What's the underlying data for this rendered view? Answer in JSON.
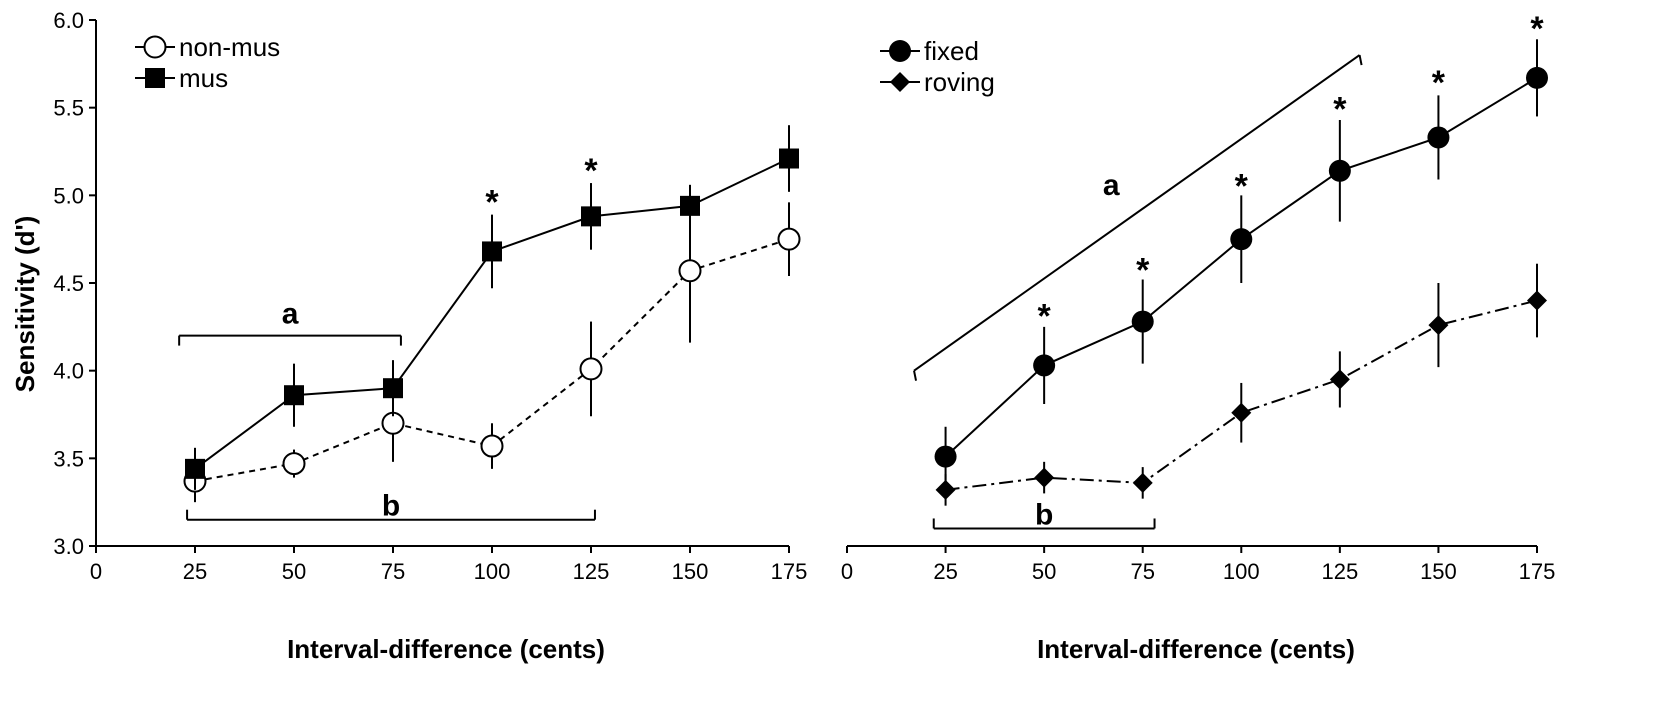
{
  "figure": {
    "ylabel": "Sensitivity (d')",
    "xlabel": "Interval-difference (cents)"
  },
  "chart_data": [
    {
      "type": "line",
      "panel": "left",
      "x": [
        25,
        50,
        75,
        100,
        125,
        150,
        175
      ],
      "xlim": [
        0,
        175
      ],
      "ylim": [
        3.0,
        6.0
      ],
      "xticks": [
        "0",
        "25",
        "50",
        "75",
        "100",
        "125",
        "150",
        "175"
      ],
      "yticks": [
        "3.0",
        "3.5",
        "4.0",
        "4.5",
        "5.0",
        "5.5",
        "6.0"
      ],
      "xlabel": "Interval-difference (cents)",
      "ylabel": "Sensitivity (d')",
      "legend_position": "top-left",
      "series": [
        {
          "name": "non-mus",
          "marker": "open-circle",
          "line": "dashed",
          "values": [
            3.37,
            3.47,
            3.7,
            3.57,
            4.01,
            4.57,
            4.75
          ],
          "errors": [
            0.12,
            0.08,
            0.22,
            0.13,
            0.27,
            0.41,
            0.21
          ]
        },
        {
          "name": "mus",
          "marker": "filled-square",
          "line": "solid",
          "values": [
            3.44,
            3.86,
            3.9,
            4.68,
            4.88,
            4.94,
            5.21
          ],
          "errors": [
            0.12,
            0.18,
            0.16,
            0.21,
            0.19,
            0.12,
            0.19
          ]
        }
      ],
      "significance_stars": [
        {
          "x": 100,
          "y": 5.0,
          "label": "*"
        },
        {
          "x": 125,
          "y": 5.18,
          "label": "*"
        }
      ],
      "brackets": [
        {
          "label": "a",
          "x_from": 21,
          "x_to": 77,
          "y": 4.2,
          "ticks": "down"
        },
        {
          "label": "b",
          "x_from": 23,
          "x_to": 126,
          "y": 3.15,
          "ticks": "up"
        }
      ]
    },
    {
      "type": "line",
      "panel": "right",
      "x": [
        25,
        50,
        75,
        100,
        125,
        150,
        175
      ],
      "xlim": [
        0,
        175
      ],
      "ylim": [
        3.0,
        6.0
      ],
      "xticks": [
        "0",
        "25",
        "50",
        "75",
        "100",
        "125",
        "150",
        "175"
      ],
      "xlabel": "Interval-difference (cents)",
      "legend_position": "top-left",
      "series": [
        {
          "name": "fixed",
          "marker": "filled-circle",
          "line": "solid",
          "values": [
            3.51,
            4.03,
            4.28,
            4.75,
            5.14,
            5.33,
            5.67
          ],
          "errors": [
            0.17,
            0.22,
            0.24,
            0.25,
            0.29,
            0.24,
            0.22
          ]
        },
        {
          "name": "roving",
          "marker": "filled-diamond",
          "line": "dash-dot",
          "values": [
            3.32,
            3.39,
            3.36,
            3.76,
            3.95,
            4.26,
            4.4
          ],
          "errors": [
            0.09,
            0.09,
            0.09,
            0.17,
            0.16,
            0.24,
            0.21
          ]
        }
      ],
      "significance_stars": [
        {
          "x": 50,
          "y": 4.35,
          "label": "*"
        },
        {
          "x": 75,
          "y": 4.61,
          "label": "*"
        },
        {
          "x": 100,
          "y": 5.09,
          "label": "*"
        },
        {
          "x": 125,
          "y": 5.53,
          "label": "*"
        },
        {
          "x": 150,
          "y": 5.68,
          "label": "*"
        },
        {
          "x": 175,
          "y": 5.99,
          "label": "*"
        }
      ],
      "brackets": [
        {
          "label": "a",
          "x_from": 17,
          "x_to": 130,
          "y_from": 4.0,
          "y_to": 5.8,
          "ticks": "down",
          "label_x": 67,
          "label_y": 5.06
        },
        {
          "label": "b",
          "x_from": 22,
          "x_to": 78,
          "y": 3.1,
          "ticks": "up"
        }
      ]
    }
  ]
}
